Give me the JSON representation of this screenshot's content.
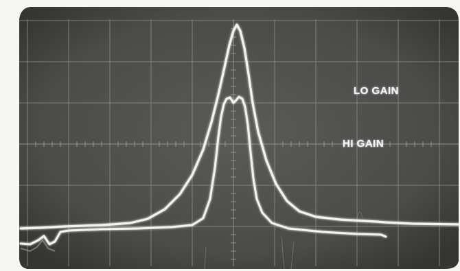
{
  "labels": {
    "lo_gain": "LO GAIN",
    "hi_gain": "HI GAIN"
  },
  "colors": {
    "screen": "#4d4d4b",
    "trace": "#f2f2ee",
    "grid": "#8a8a86",
    "frame": "#f6f6f4"
  }
}
